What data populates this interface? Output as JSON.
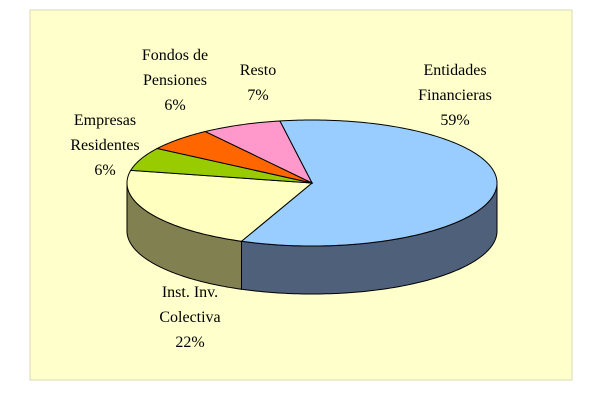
{
  "chart_data": {
    "type": "pie3d",
    "categories": [
      "Entidades\nFinancieras",
      "Inst. Inv.\nColectiva",
      "Empresas\nResidentes",
      "Fondos de\nPensiones",
      "Resto"
    ],
    "values": [
      59,
      22,
      6,
      6,
      7
    ],
    "value_labels": [
      "59%",
      "22%",
      "6%",
      "6%",
      "7%"
    ],
    "colors": [
      "#99ccff",
      "#ffffc0",
      "#99cc00",
      "#ff6600",
      "#ff99cc"
    ],
    "side_colors": [
      "#4f607a",
      "#808050",
      "#5c7a00",
      "#993d00",
      "#995c7a"
    ]
  }
}
